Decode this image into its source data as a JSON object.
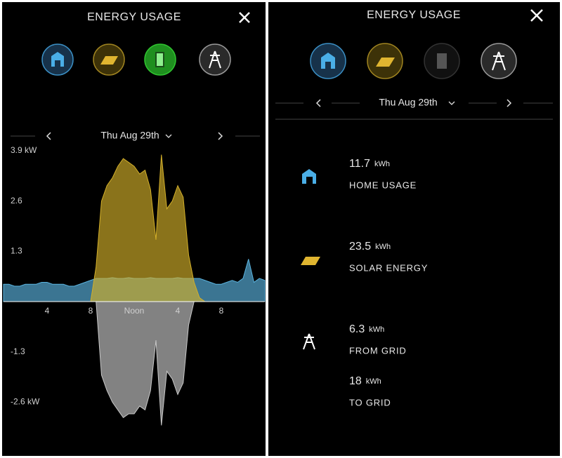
{
  "left_screen": {
    "title": "ENERGY USAGE",
    "date": "Thu Aug 29th"
  },
  "chart_data": {
    "type": "area",
    "x": [
      0,
      0.5,
      1,
      1.5,
      2,
      2.5,
      3,
      3.5,
      4,
      4.5,
      5,
      5.5,
      6,
      6.5,
      7,
      7.5,
      8,
      8.5,
      9,
      9.5,
      10,
      10.5,
      11,
      11.5,
      12,
      12.5,
      13,
      13.5,
      14,
      14.5,
      15,
      15.5,
      16,
      16.5,
      17,
      17.5,
      18,
      18.5,
      19,
      19.5,
      20,
      20.5,
      21,
      21.5,
      22,
      22.5,
      23,
      23.5,
      24
    ],
    "xlim": [
      0,
      24
    ],
    "xticks": [
      4,
      8,
      {
        "value": 12,
        "label": "Noon"
      },
      {
        "value": 16,
        "label": "4"
      },
      {
        "value": 20,
        "label": "8"
      }
    ],
    "ylim": [
      -3.3,
      4.0
    ],
    "yticks": [
      {
        "value": 3.9,
        "label": "3.9 kW"
      },
      2.6,
      1.3,
      -1.3,
      {
        "value": -2.6,
        "label": "-2.6 kW"
      }
    ],
    "grid": false,
    "series": [
      {
        "color": "#5ab4e0",
        "values": [
          0.45,
          0.45,
          0.4,
          0.4,
          0.45,
          0.45,
          0.45,
          0.5,
          0.5,
          0.45,
          0.45,
          0.45,
          0.4,
          0.4,
          0.45,
          0.5,
          0.55,
          0.6,
          0.6,
          0.6,
          0.62,
          0.6,
          0.6,
          0.62,
          0.6,
          0.6,
          0.6,
          0.62,
          0.6,
          0.6,
          0.6,
          0.6,
          0.62,
          0.6,
          0.6,
          0.6,
          0.6,
          0.55,
          0.5,
          0.45,
          0.45,
          0.5,
          0.55,
          0.5,
          0.6,
          1.1,
          0.5,
          0.6,
          0.55
        ]
      },
      {
        "color": "#d4b02a",
        "values": [
          0,
          0,
          0,
          0,
          0,
          0,
          0,
          0,
          0,
          0,
          0,
          0,
          0,
          0,
          0,
          0,
          0,
          0.9,
          2.6,
          3.0,
          3.2,
          3.5,
          3.7,
          3.6,
          3.5,
          3.3,
          3.4,
          2.9,
          1.6,
          3.8,
          2.4,
          2.6,
          3.0,
          2.7,
          1.2,
          0.5,
          0.1,
          0,
          0,
          0,
          0,
          0,
          0,
          0,
          0,
          0,
          0,
          0,
          0
        ]
      },
      {
        "color": "#c8c8c8",
        "values": [
          0,
          0,
          0,
          0,
          0,
          0,
          0,
          0,
          0,
          0,
          0,
          0,
          0,
          0,
          0,
          0,
          0,
          0,
          -1.9,
          -2.3,
          -2.6,
          -2.8,
          -3.0,
          -2.9,
          -2.9,
          -2.7,
          -2.8,
          -2.3,
          -1.0,
          -3.2,
          -1.8,
          -2.0,
          -2.4,
          -2.1,
          -0.6,
          0,
          0,
          0,
          0,
          0,
          0,
          0,
          0,
          0,
          0,
          0,
          0,
          0,
          0
        ]
      }
    ]
  },
  "right_screen": {
    "title": "ENERGY USAGE",
    "date": "Thu Aug 29th",
    "stats": [
      {
        "value": 11.7,
        "unit": "kWh",
        "label": "HOME USAGE"
      },
      {
        "value": 23.5,
        "unit": "kWh",
        "label": "SOLAR ENERGY"
      },
      {
        "value": 6.3,
        "unit": "kWh",
        "label": "FROM GRID"
      },
      {
        "value": 18,
        "unit": "kWh",
        "label": "TO GRID"
      }
    ]
  }
}
